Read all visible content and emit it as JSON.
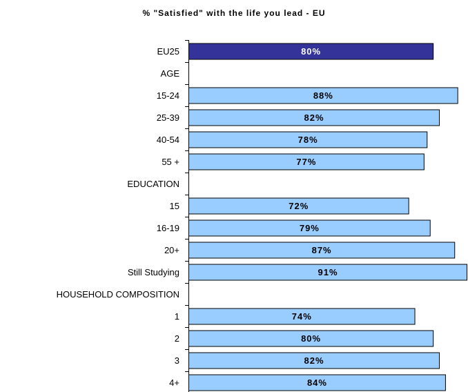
{
  "chart_data": {
    "type": "bar",
    "orientation": "horizontal",
    "title": "% \"Satisfied\" with the life you lead - EU",
    "xlabel": "",
    "ylabel": "",
    "xlim": [
      0,
      91
    ],
    "grid": false,
    "legend": "none",
    "colors": {
      "highlight_fill": "#333399",
      "bar_fill": "#99CCFF",
      "bar_stroke": "#000000",
      "highlight_text": "#FFFFFF",
      "bar_text": "#000000"
    },
    "rows": [
      {
        "label": "EU25",
        "value": 80,
        "value_label": "80%",
        "highlight": true
      },
      {
        "label": "AGE",
        "value": null,
        "value_label": "",
        "group_header": true
      },
      {
        "label": "15-24",
        "value": 88,
        "value_label": "88%"
      },
      {
        "label": "25-39",
        "value": 82,
        "value_label": "82%"
      },
      {
        "label": "40-54",
        "value": 78,
        "value_label": "78%"
      },
      {
        "label": "55 +",
        "value": 77,
        "value_label": "77%"
      },
      {
        "label": "EDUCATION",
        "value": null,
        "value_label": "",
        "group_header": true
      },
      {
        "label": "15",
        "value": 72,
        "value_label": "72%"
      },
      {
        "label": "16-19",
        "value": 79,
        "value_label": "79%"
      },
      {
        "label": "20+",
        "value": 87,
        "value_label": "87%"
      },
      {
        "label": "Still Studying",
        "value": 91,
        "value_label": "91%"
      },
      {
        "label": "HOUSEHOLD COMPOSITION",
        "value": null,
        "value_label": "",
        "group_header": true
      },
      {
        "label": "1",
        "value": 74,
        "value_label": "74%"
      },
      {
        "label": "2",
        "value": 80,
        "value_label": "80%"
      },
      {
        "label": "3",
        "value": 82,
        "value_label": "82%"
      },
      {
        "label": "4+",
        "value": 84,
        "value_label": "84%"
      }
    ]
  }
}
